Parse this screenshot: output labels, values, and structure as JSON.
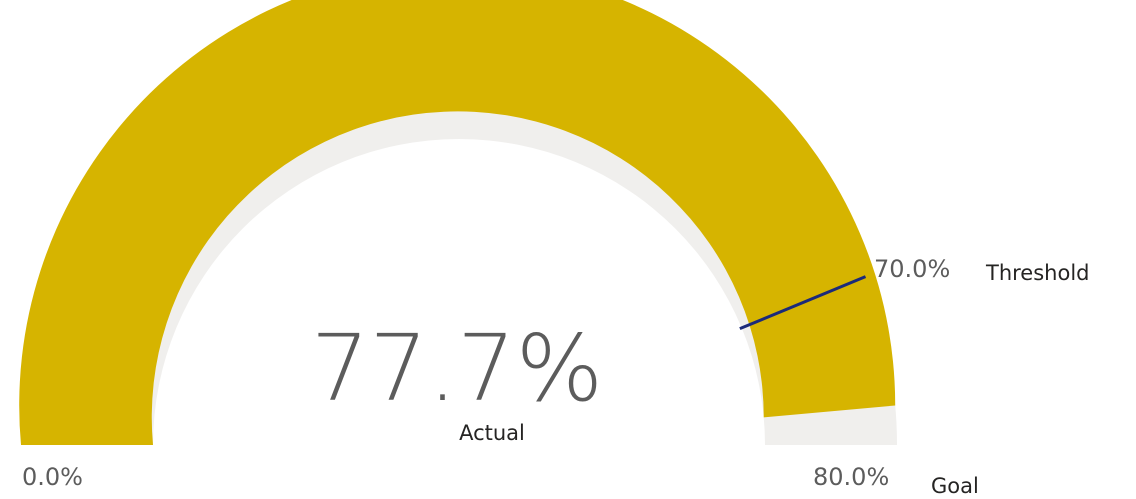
{
  "colors": {
    "fill": "#D6B400",
    "background_arc": "#F0EFED",
    "threshold_line": "#1B2A7A",
    "value_text": "#5C5C5C",
    "label_text": "#252423",
    "tick_text": "#5C5C5C"
  },
  "chart_data": {
    "type": "gauge",
    "min": 0.0,
    "max": 80.0,
    "value": 77.7,
    "threshold": 70.0,
    "labels": {
      "value": "77.7%",
      "value_caption": "Actual",
      "min": "0.0%",
      "max": "80.0%",
      "max_caption": "Goal",
      "threshold": "70.0%",
      "threshold_caption": "Threshold"
    }
  }
}
